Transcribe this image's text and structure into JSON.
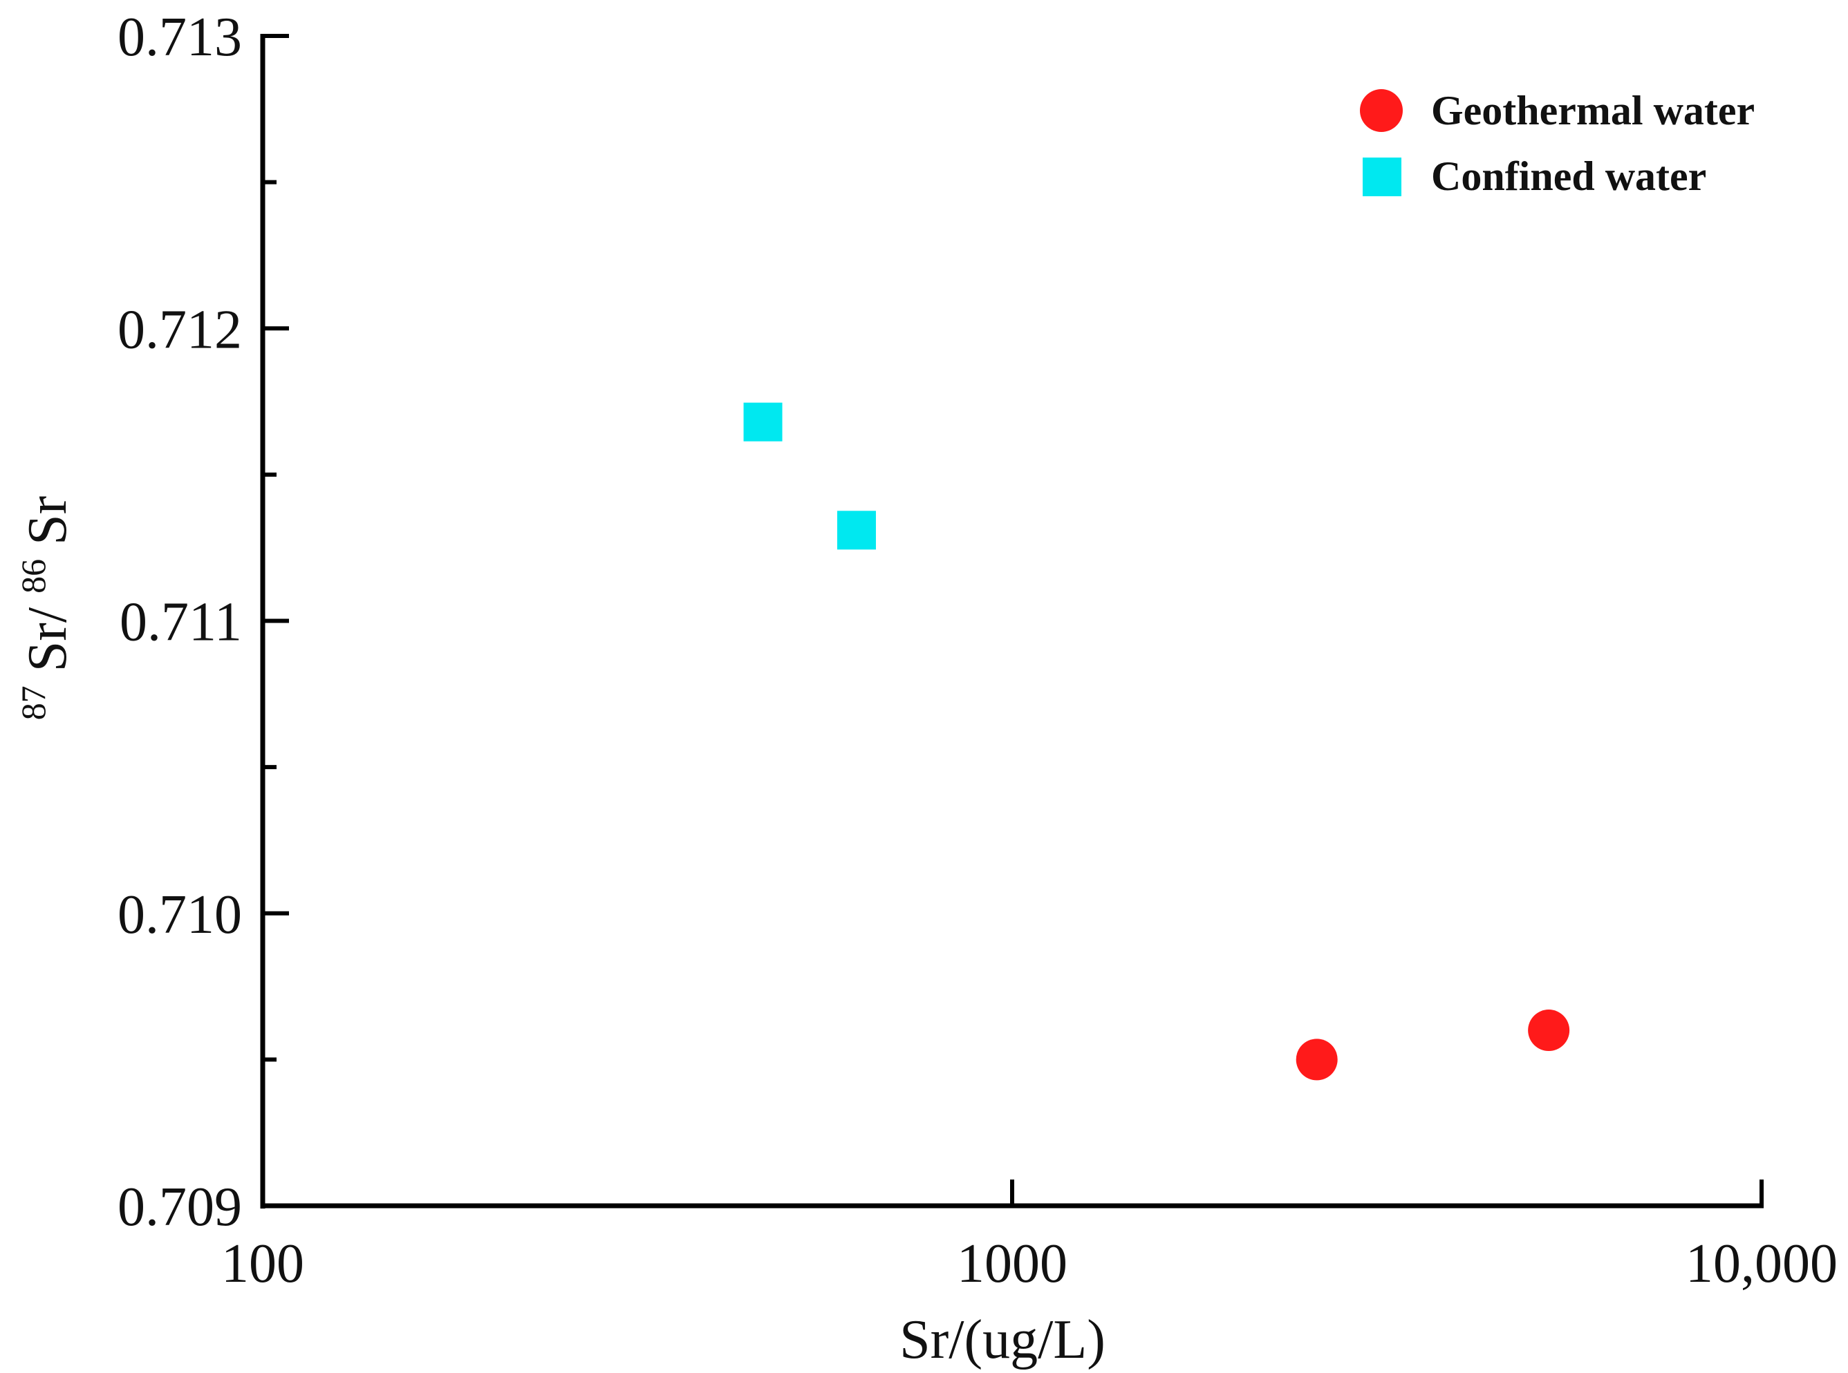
{
  "chart_data": {
    "type": "scatter",
    "title": "",
    "xlabel": "Sr/(ug/L)",
    "ylabel": {
      "sup1": "87",
      "base1": "Sr/",
      "sup2": "86",
      "base2": "Sr"
    },
    "xscale": "log",
    "xlim": [
      100,
      10000
    ],
    "ylim": [
      0.709,
      0.713
    ],
    "x_ticks": [
      {
        "value": 100,
        "label": "100"
      },
      {
        "value": 1000,
        "label": "1000"
      },
      {
        "value": 10000,
        "label": "10,000"
      }
    ],
    "y_ticks": [
      {
        "value": 0.709,
        "label": "0.709"
      },
      {
        "value": 0.71,
        "label": "0.710"
      },
      {
        "value": 0.711,
        "label": "0.711"
      },
      {
        "value": 0.712,
        "label": "0.712"
      },
      {
        "value": 0.713,
        "label": "0.713"
      }
    ],
    "y_minor_ticks": [
      0.7095,
      0.7105,
      0.7115,
      0.7125
    ],
    "grid": false,
    "legend_position": "top-right",
    "series": [
      {
        "name": "Geothermal water",
        "marker": "circle",
        "color": "#ff1a1a",
        "points": [
          {
            "x": 2550,
            "y": 0.7095
          },
          {
            "x": 5200,
            "y": 0.7096
          }
        ]
      },
      {
        "name": "Confined water",
        "marker": "square",
        "color": "#00e8f0",
        "points": [
          {
            "x": 465,
            "y": 0.71168
          },
          {
            "x": 620,
            "y": 0.71131
          }
        ]
      }
    ]
  }
}
